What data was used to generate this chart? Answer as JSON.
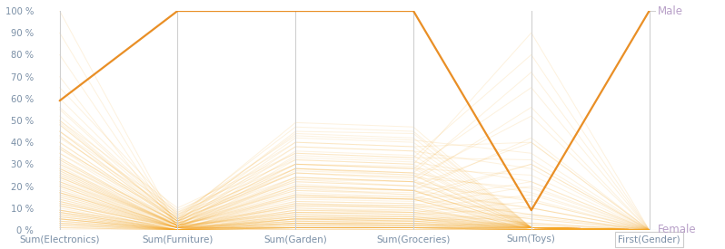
{
  "axes": [
    "Sum(Electronics)",
    "Sum(Furniture)",
    "Sum(Garden)",
    "Sum(Groceries)",
    "Sum(Toys)",
    "First(Gender)"
  ],
  "ylim": [
    0,
    100
  ],
  "yticks": [
    0,
    10,
    20,
    30,
    40,
    50,
    60,
    70,
    80,
    90,
    100
  ],
  "ytick_labels": [
    "0 %",
    "10 %",
    "20 %",
    "30 %",
    "40 %",
    "50 %",
    "60 %",
    "70 %",
    "80 %",
    "90 %",
    "100 %"
  ],
  "highlighted_line": [
    59,
    100,
    100,
    100,
    9,
    100
  ],
  "highlighted_color": "#e8891a",
  "background_lines": [
    [
      100,
      1,
      1,
      1,
      1,
      0
    ],
    [
      90,
      1,
      1,
      1,
      1,
      0
    ],
    [
      80,
      1,
      1,
      1,
      1,
      0
    ],
    [
      70,
      1,
      1,
      1,
      1,
      0
    ],
    [
      30,
      3,
      10,
      8,
      1,
      0
    ],
    [
      28,
      2,
      8,
      7,
      1,
      0
    ],
    [
      26,
      2,
      7,
      6,
      1,
      0
    ],
    [
      24,
      2,
      6,
      5,
      1,
      0
    ],
    [
      22,
      1,
      5,
      5,
      1,
      0
    ],
    [
      20,
      1,
      5,
      4,
      1,
      0
    ],
    [
      18,
      1,
      4,
      4,
      1,
      0
    ],
    [
      16,
      1,
      4,
      3,
      1,
      0
    ],
    [
      14,
      1,
      3,
      3,
      1,
      0
    ],
    [
      12,
      1,
      3,
      2,
      1,
      0
    ],
    [
      10,
      0,
      2,
      2,
      1,
      0
    ],
    [
      9,
      0,
      2,
      2,
      0,
      0
    ],
    [
      8,
      0,
      2,
      1,
      0,
      0
    ],
    [
      7,
      0,
      1,
      1,
      0,
      0
    ],
    [
      6,
      0,
      1,
      1,
      0,
      0
    ],
    [
      5,
      0,
      1,
      1,
      0,
      0
    ],
    [
      4,
      0,
      1,
      0,
      0,
      0
    ],
    [
      3,
      0,
      0,
      0,
      0,
      0
    ],
    [
      2,
      0,
      0,
      0,
      0,
      0
    ],
    [
      1,
      0,
      0,
      0,
      0,
      0
    ],
    [
      0,
      0,
      0,
      0,
      0,
      0
    ],
    [
      50,
      5,
      30,
      28,
      1,
      0
    ],
    [
      45,
      4,
      28,
      25,
      1,
      0
    ],
    [
      40,
      4,
      26,
      23,
      1,
      0
    ],
    [
      35,
      3,
      23,
      20,
      1,
      0
    ],
    [
      32,
      3,
      21,
      18,
      1,
      0
    ],
    [
      29,
      2,
      19,
      16,
      1,
      0
    ],
    [
      27,
      2,
      17,
      15,
      1,
      0
    ],
    [
      25,
      2,
      15,
      14,
      1,
      0
    ],
    [
      23,
      2,
      13,
      12,
      1,
      0
    ],
    [
      21,
      1,
      11,
      10,
      1,
      0
    ],
    [
      19,
      1,
      9,
      9,
      1,
      0
    ],
    [
      17,
      1,
      8,
      7,
      1,
      0
    ],
    [
      15,
      1,
      6,
      6,
      1,
      0
    ],
    [
      13,
      0,
      5,
      5,
      0,
      0
    ],
    [
      11,
      0,
      4,
      4,
      0,
      0
    ],
    [
      9,
      0,
      3,
      3,
      0,
      0
    ],
    [
      7,
      0,
      2,
      2,
      0,
      0
    ],
    [
      5,
      0,
      1,
      1,
      0,
      0
    ],
    [
      3,
      0,
      1,
      1,
      0,
      0
    ],
    [
      1,
      0,
      0,
      0,
      0,
      0
    ],
    [
      48,
      5,
      49,
      47,
      1,
      0
    ],
    [
      43,
      4,
      45,
      44,
      1,
      0
    ],
    [
      38,
      4,
      42,
      40,
      1,
      0
    ],
    [
      33,
      3,
      38,
      36,
      1,
      0
    ],
    [
      28,
      2,
      34,
      32,
      1,
      0
    ],
    [
      24,
      2,
      30,
      29,
      1,
      0
    ],
    [
      20,
      1,
      27,
      25,
      1,
      0
    ],
    [
      17,
      1,
      23,
      22,
      1,
      0
    ],
    [
      14,
      1,
      19,
      18,
      1,
      0
    ],
    [
      11,
      0,
      15,
      14,
      0,
      0
    ],
    [
      8,
      0,
      11,
      11,
      0,
      0
    ],
    [
      6,
      0,
      8,
      8,
      0,
      0
    ],
    [
      4,
      0,
      5,
      5,
      0,
      0
    ],
    [
      2,
      0,
      3,
      3,
      0,
      0
    ],
    [
      0,
      0,
      1,
      1,
      0,
      0
    ],
    [
      55,
      6,
      47,
      45,
      1,
      0
    ],
    [
      49,
      5,
      44,
      42,
      1,
      0
    ],
    [
      43,
      4,
      40,
      38,
      1,
      0
    ],
    [
      37,
      3,
      36,
      34,
      1,
      0
    ],
    [
      31,
      2,
      32,
      30,
      1,
      0
    ],
    [
      25,
      2,
      28,
      26,
      1,
      0
    ],
    [
      20,
      1,
      24,
      22,
      1,
      0
    ],
    [
      15,
      1,
      20,
      18,
      1,
      0
    ],
    [
      11,
      0,
      16,
      14,
      0,
      0
    ],
    [
      7,
      0,
      12,
      10,
      0,
      0
    ],
    [
      4,
      0,
      7,
      6,
      0,
      0
    ],
    [
      2,
      0,
      3,
      3,
      0,
      0
    ],
    [
      60,
      7,
      43,
      41,
      35,
      0
    ],
    [
      52,
      6,
      38,
      36,
      28,
      0
    ],
    [
      45,
      5,
      33,
      31,
      22,
      0
    ],
    [
      38,
      4,
      28,
      26,
      17,
      0
    ],
    [
      32,
      3,
      24,
      22,
      13,
      0
    ],
    [
      26,
      2,
      20,
      18,
      10,
      0
    ],
    [
      21,
      2,
      16,
      15,
      7,
      0
    ],
    [
      16,
      1,
      13,
      12,
      5,
      0
    ],
    [
      12,
      1,
      10,
      9,
      3,
      0
    ],
    [
      8,
      0,
      7,
      6,
      2,
      0
    ],
    [
      5,
      0,
      5,
      4,
      1,
      0
    ],
    [
      3,
      0,
      3,
      2,
      0,
      0
    ],
    [
      1,
      0,
      1,
      1,
      0,
      0
    ],
    [
      65,
      8,
      40,
      38,
      40,
      0
    ],
    [
      56,
      7,
      35,
      33,
      32,
      0
    ],
    [
      48,
      5,
      30,
      28,
      25,
      0
    ],
    [
      40,
      4,
      26,
      24,
      19,
      0
    ],
    [
      33,
      3,
      22,
      20,
      14,
      0
    ],
    [
      27,
      2,
      18,
      17,
      10,
      0
    ],
    [
      22,
      2,
      15,
      14,
      7,
      0
    ],
    [
      17,
      1,
      12,
      11,
      5,
      0
    ],
    [
      12,
      1,
      9,
      8,
      3,
      0
    ],
    [
      8,
      0,
      6,
      5,
      2,
      0
    ],
    [
      5,
      0,
      4,
      3,
      1,
      0
    ],
    [
      50,
      10,
      35,
      33,
      80,
      0
    ],
    [
      42,
      8,
      30,
      28,
      65,
      0
    ],
    [
      35,
      6,
      26,
      24,
      52,
      0
    ],
    [
      28,
      4,
      22,
      20,
      40,
      0
    ],
    [
      22,
      3,
      18,
      16,
      30,
      0
    ],
    [
      17,
      2,
      14,
      13,
      22,
      0
    ],
    [
      13,
      1,
      11,
      10,
      16,
      0
    ],
    [
      9,
      1,
      8,
      7,
      10,
      0
    ],
    [
      6,
      0,
      5,
      4,
      6,
      0
    ],
    [
      3,
      0,
      3,
      2,
      3,
      0
    ],
    [
      45,
      9,
      32,
      30,
      90,
      0
    ],
    [
      37,
      7,
      28,
      26,
      72,
      0
    ],
    [
      30,
      5,
      24,
      22,
      56,
      0
    ],
    [
      24,
      3,
      20,
      18,
      42,
      0
    ],
    [
      18,
      2,
      16,
      14,
      30,
      0
    ],
    [
      13,
      1,
      12,
      11,
      20,
      0
    ],
    [
      9,
      1,
      9,
      8,
      13,
      0
    ],
    [
      5,
      0,
      6,
      5,
      7,
      0
    ]
  ],
  "faded_color": "#f5a623",
  "faded_alpha": 0.15,
  "axis_color": "#d0d0d0",
  "tick_color": "#7a8fa6",
  "label_color": "#7a8fa6",
  "right_label_color": "#b8a0c8",
  "figsize": [
    7.98,
    2.75
  ],
  "dpi": 100
}
